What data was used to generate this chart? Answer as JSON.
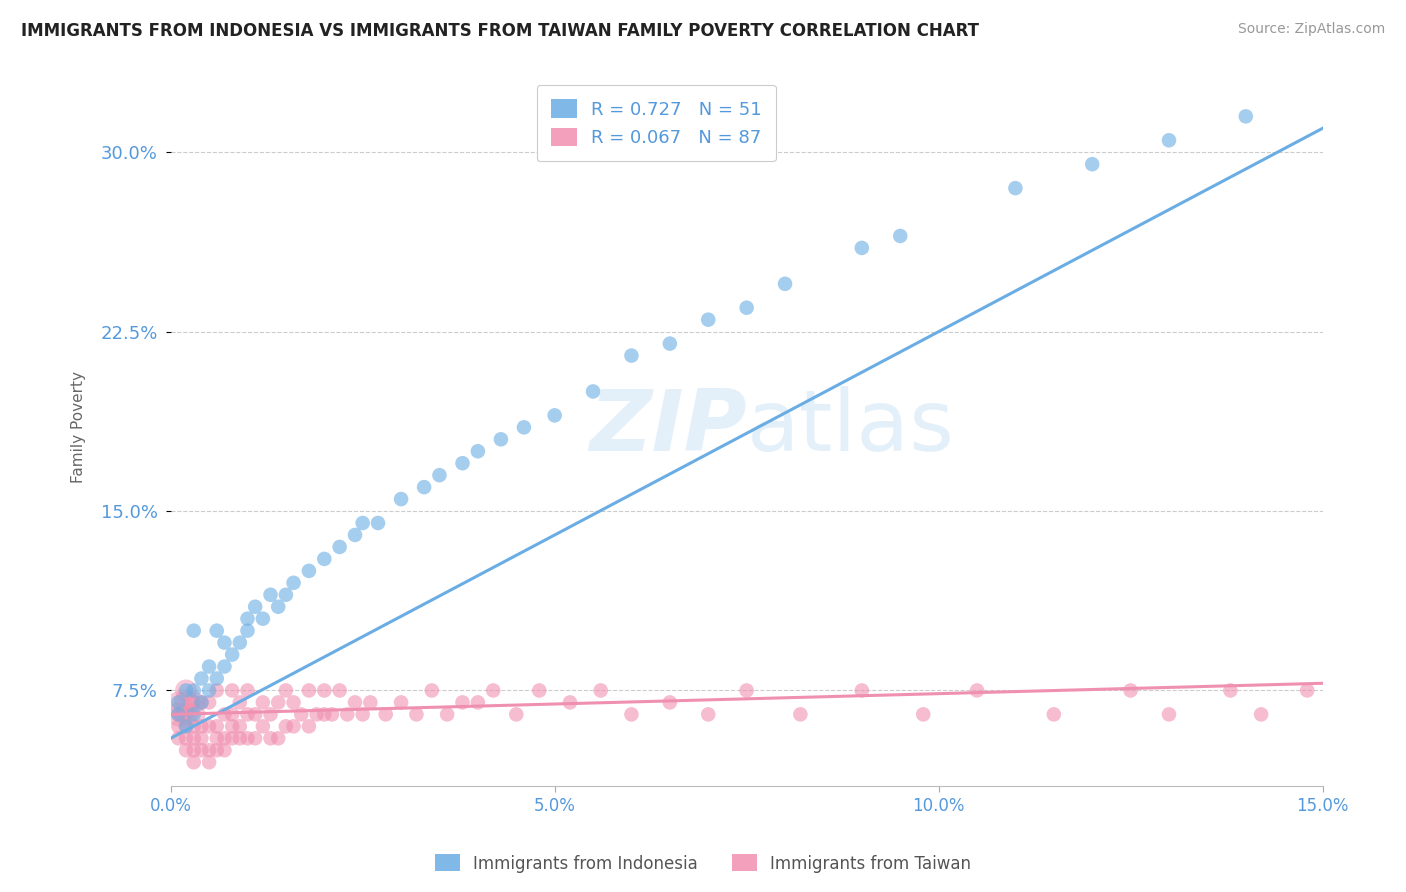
{
  "title": "IMMIGRANTS FROM INDONESIA VS IMMIGRANTS FROM TAIWAN FAMILY POVERTY CORRELATION CHART",
  "source": "Source: ZipAtlas.com",
  "ylabel": "Family Poverty",
  "xlim": [
    0.0,
    0.15
  ],
  "ylim": [
    0.035,
    0.335
  ],
  "yticks": [
    0.075,
    0.15,
    0.225,
    0.3
  ],
  "ytick_labels": [
    "7.5%",
    "15.0%",
    "22.5%",
    "30.0%"
  ],
  "xticks": [
    0.0,
    0.05,
    0.1,
    0.15
  ],
  "xtick_labels": [
    "0.0%",
    "5.0%",
    "10.0%",
    "15.0%"
  ],
  "indonesia_color": "#6aade4",
  "taiwan_color": "#f090b0",
  "indonesia_R": 0.727,
  "indonesia_N": 51,
  "taiwan_R": 0.067,
  "taiwan_N": 87,
  "background_color": "#ffffff",
  "grid_color": "#cccccc",
  "tick_color": "#5599dd",
  "title_color": "#222222",
  "legend_label_indonesia": "Immigrants from Indonesia",
  "legend_label_taiwan": "Immigrants from Taiwan",
  "indo_line_x0": 0.0,
  "indo_line_y0": 0.055,
  "indo_line_x1": 0.15,
  "indo_line_y1": 0.31,
  "taiwan_line_x0": 0.0,
  "taiwan_line_y0": 0.065,
  "taiwan_line_x1": 0.15,
  "taiwan_line_y1": 0.078,
  "indonesia_scatter_x": [
    0.001,
    0.001,
    0.002,
    0.002,
    0.003,
    0.003,
    0.003,
    0.004,
    0.004,
    0.005,
    0.005,
    0.006,
    0.006,
    0.007,
    0.007,
    0.008,
    0.009,
    0.01,
    0.01,
    0.011,
    0.012,
    0.013,
    0.014,
    0.015,
    0.016,
    0.018,
    0.02,
    0.022,
    0.024,
    0.025,
    0.027,
    0.03,
    0.033,
    0.035,
    0.038,
    0.04,
    0.043,
    0.046,
    0.05,
    0.055,
    0.06,
    0.065,
    0.07,
    0.075,
    0.08,
    0.09,
    0.095,
    0.11,
    0.12,
    0.13,
    0.14
  ],
  "indonesia_scatter_y": [
    0.065,
    0.07,
    0.06,
    0.075,
    0.065,
    0.075,
    0.1,
    0.07,
    0.08,
    0.075,
    0.085,
    0.08,
    0.1,
    0.085,
    0.095,
    0.09,
    0.095,
    0.1,
    0.105,
    0.11,
    0.105,
    0.115,
    0.11,
    0.115,
    0.12,
    0.125,
    0.13,
    0.135,
    0.14,
    0.145,
    0.145,
    0.155,
    0.16,
    0.165,
    0.17,
    0.175,
    0.18,
    0.185,
    0.19,
    0.2,
    0.215,
    0.22,
    0.23,
    0.235,
    0.245,
    0.26,
    0.265,
    0.285,
    0.295,
    0.305,
    0.315
  ],
  "taiwan_scatter_x": [
    0.001,
    0.001,
    0.001,
    0.002,
    0.002,
    0.002,
    0.002,
    0.003,
    0.003,
    0.003,
    0.003,
    0.003,
    0.004,
    0.004,
    0.004,
    0.004,
    0.005,
    0.005,
    0.005,
    0.005,
    0.006,
    0.006,
    0.006,
    0.006,
    0.007,
    0.007,
    0.007,
    0.008,
    0.008,
    0.008,
    0.008,
    0.009,
    0.009,
    0.009,
    0.01,
    0.01,
    0.01,
    0.011,
    0.011,
    0.012,
    0.012,
    0.013,
    0.013,
    0.014,
    0.014,
    0.015,
    0.015,
    0.016,
    0.016,
    0.017,
    0.018,
    0.018,
    0.019,
    0.02,
    0.02,
    0.021,
    0.022,
    0.023,
    0.024,
    0.025,
    0.026,
    0.028,
    0.03,
    0.032,
    0.034,
    0.036,
    0.038,
    0.04,
    0.042,
    0.045,
    0.048,
    0.052,
    0.056,
    0.06,
    0.065,
    0.07,
    0.075,
    0.082,
    0.09,
    0.098,
    0.105,
    0.115,
    0.125,
    0.13,
    0.138,
    0.142,
    0.148
  ],
  "taiwan_scatter_y": [
    0.055,
    0.06,
    0.065,
    0.05,
    0.055,
    0.06,
    0.065,
    0.045,
    0.05,
    0.055,
    0.06,
    0.07,
    0.05,
    0.055,
    0.06,
    0.07,
    0.045,
    0.05,
    0.06,
    0.07,
    0.05,
    0.055,
    0.06,
    0.075,
    0.05,
    0.055,
    0.065,
    0.055,
    0.06,
    0.065,
    0.075,
    0.055,
    0.06,
    0.07,
    0.055,
    0.065,
    0.075,
    0.055,
    0.065,
    0.06,
    0.07,
    0.055,
    0.065,
    0.055,
    0.07,
    0.06,
    0.075,
    0.06,
    0.07,
    0.065,
    0.06,
    0.075,
    0.065,
    0.065,
    0.075,
    0.065,
    0.075,
    0.065,
    0.07,
    0.065,
    0.07,
    0.065,
    0.07,
    0.065,
    0.075,
    0.065,
    0.07,
    0.07,
    0.075,
    0.065,
    0.075,
    0.07,
    0.075,
    0.065,
    0.07,
    0.065,
    0.075,
    0.065,
    0.075,
    0.065,
    0.075,
    0.065,
    0.075,
    0.065,
    0.075,
    0.065,
    0.075
  ],
  "taiwan_big_cluster_x": [
    0.001,
    0.001,
    0.002,
    0.002,
    0.002,
    0.003,
    0.003
  ],
  "taiwan_big_cluster_y": [
    0.065,
    0.07,
    0.065,
    0.07,
    0.075,
    0.065,
    0.07
  ],
  "taiwan_big_cluster_s": [
    300,
    250,
    280,
    300,
    250,
    280,
    260
  ]
}
